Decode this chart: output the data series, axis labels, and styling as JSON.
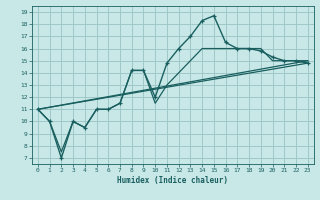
{
  "xlabel": "Humidex (Indice chaleur)",
  "bg_color": "#c8e8e8",
  "grid_color": "#a0c8c8",
  "line_color": "#1a5f5f",
  "xlim": [
    -0.5,
    23.5
  ],
  "ylim": [
    6.5,
    19.5
  ],
  "xticks": [
    0,
    1,
    2,
    3,
    4,
    5,
    6,
    7,
    8,
    9,
    10,
    11,
    12,
    13,
    14,
    15,
    16,
    17,
    18,
    19,
    20,
    21,
    22,
    23
  ],
  "yticks": [
    7,
    8,
    9,
    10,
    11,
    12,
    13,
    14,
    15,
    16,
    17,
    18,
    19
  ],
  "line1_x": [
    0,
    1,
    2,
    3,
    4,
    5,
    6,
    7,
    8,
    9,
    10,
    11,
    12,
    13,
    14,
    15,
    16,
    17,
    18,
    19,
    20,
    21,
    22,
    23
  ],
  "line1_y": [
    11,
    10,
    7,
    10,
    9.5,
    11,
    11,
    11.5,
    14.2,
    14.2,
    12,
    14.8,
    16,
    17,
    18.3,
    18.7,
    16.5,
    16,
    16,
    15.8,
    15.3,
    15,
    15,
    14.8
  ],
  "line2_x": [
    0,
    1,
    2,
    3,
    4,
    5,
    6,
    7,
    8,
    9,
    10,
    11,
    12,
    13,
    14,
    15,
    16,
    17,
    18,
    19,
    20,
    21,
    22,
    23
  ],
  "line2_y": [
    11,
    10,
    7.5,
    10,
    9.5,
    11,
    11,
    11.5,
    14.2,
    14.2,
    11.5,
    13,
    14,
    15,
    16,
    16,
    16,
    16,
    16,
    16,
    15,
    15,
    15,
    15
  ],
  "line3_x": [
    0,
    23
  ],
  "line3_y": [
    11,
    15
  ],
  "line4_x": [
    0,
    23
  ],
  "line4_y": [
    11,
    14.8
  ]
}
